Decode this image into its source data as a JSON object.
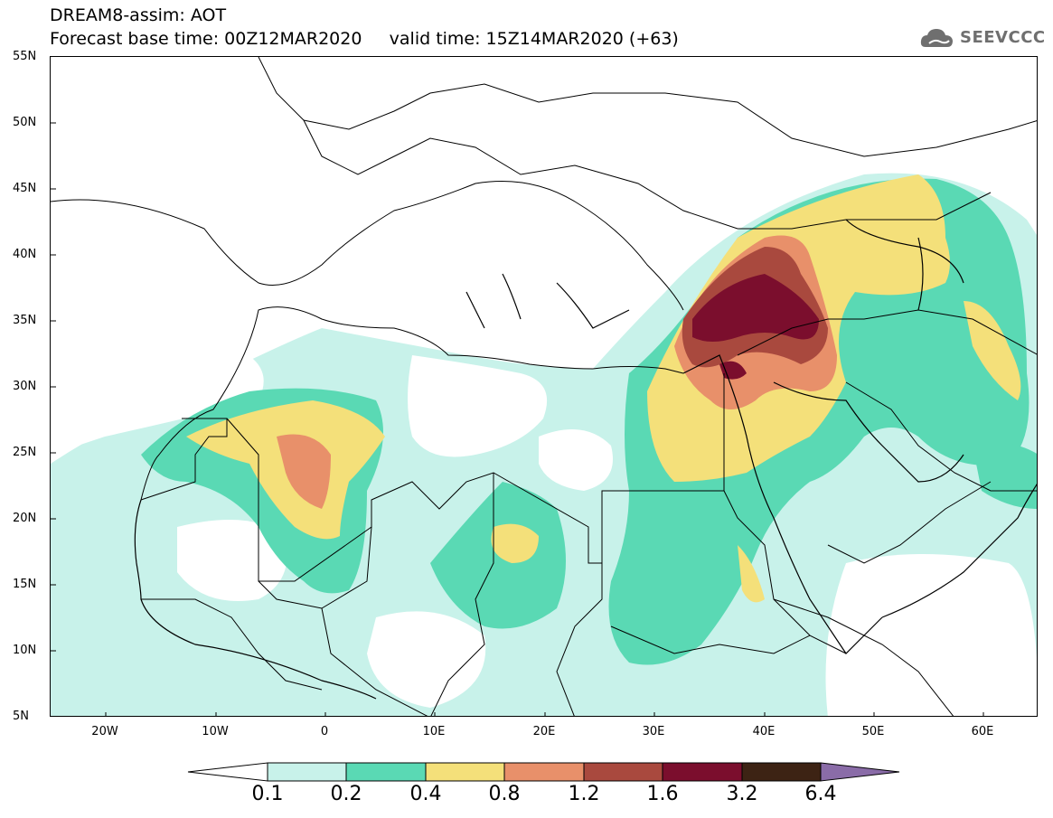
{
  "header": {
    "title_line1": "DREAM8-assim: AOT",
    "title_line2": "Forecast base time: 00Z12MAR2020     valid time: 15Z14MAR2020 (+63)",
    "logo_text": "SEEVCCC"
  },
  "map": {
    "lat_labels": [
      "55N",
      "50N",
      "45N",
      "40N",
      "35N",
      "30N",
      "25N",
      "20N",
      "15N",
      "10N",
      "5N"
    ],
    "lon_labels": [
      "20W",
      "10W",
      "0",
      "10E",
      "20E",
      "30E",
      "40E",
      "50E",
      "60E"
    ]
  },
  "legend": {
    "labels": [
      "0.1",
      "0.2",
      "0.4",
      "0.8",
      "1.2",
      "1.6",
      "3.2",
      "6.4"
    ],
    "colors": [
      "#c8f2ea",
      "#5ad9b4",
      "#f4e07a",
      "#e8906a",
      "#a9493e",
      "#7b0e2d",
      "#3d2314",
      "#8a6ca8"
    ],
    "under_color": "#ffffff"
  }
}
